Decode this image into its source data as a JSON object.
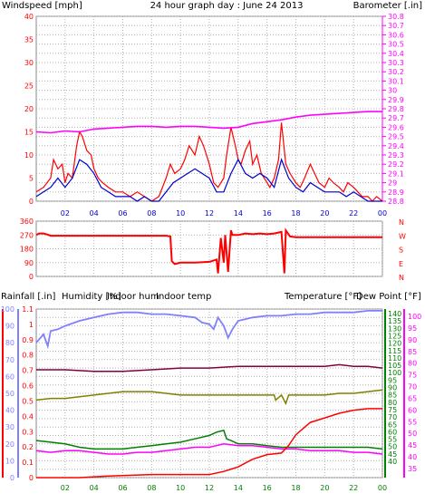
{
  "colors": {
    "wind": "#ff0000",
    "gust_avg": "#0000cc",
    "barometer": "#ff00ff",
    "direction": "#ff0000",
    "grid": "#b0b0b0",
    "title": "#0000cc",
    "humidity": "#8080ff",
    "indoor_hum": "#808000",
    "indoor_temp": "#800040",
    "temperature": "#008000",
    "dewpoint": "#ff00ff",
    "rainfall": "#ff0000",
    "bottom_axis": "#008000"
  },
  "chart_data": [
    {
      "type": "line",
      "title": "24 hour graph day : June 24 2013",
      "ylabel": "Windspeed [mph]",
      "y2label": "Barometer [.in]",
      "ylim": [
        0,
        40
      ],
      "y_ticks": [
        "0",
        "5",
        "10",
        "15",
        "20",
        "25",
        "30",
        "35",
        "40"
      ],
      "y2lim": [
        28.8,
        30.8
      ],
      "y2_ticks": [
        "28.8",
        "28.9",
        "29",
        "29.1",
        "29.2",
        "29.3",
        "29.4",
        "29.5",
        "29.6",
        "29.7",
        "29.8",
        "29.9",
        "30",
        "30.1",
        "30.2",
        "30.3",
        "30.4",
        "30.5",
        "30.6",
        "30.7",
        "30.8"
      ],
      "x_ticks": [
        "02",
        "04",
        "06",
        "08",
        "10",
        "12",
        "14",
        "16",
        "18",
        "20",
        "22",
        "00"
      ],
      "xlim": [
        0,
        24
      ],
      "grid": true,
      "series": [
        {
          "key": "wind",
          "axis": "left",
          "x": [
            0,
            0.5,
            1,
            1.2,
            1.5,
            1.8,
            2,
            2.2,
            2.5,
            2.8,
            3,
            3.2,
            3.5,
            3.8,
            4,
            4.3,
            4.6,
            5,
            5.5,
            6,
            6.5,
            7,
            7.5,
            8,
            8.5,
            9,
            9.3,
            9.6,
            10,
            10.3,
            10.6,
            11,
            11.3,
            11.6,
            12,
            12.3,
            12.6,
            13,
            13.2,
            13.5,
            13.8,
            14,
            14.2,
            14.5,
            14.8,
            15,
            15.3,
            15.6,
            16,
            16.2,
            16.5,
            16.8,
            17,
            17.3,
            17.6,
            18,
            18.3,
            18.6,
            19,
            19.3,
            19.6,
            20,
            20.3,
            20.6,
            21,
            21.3,
            21.6,
            22,
            22.3,
            22.6,
            23,
            23.3,
            23.6,
            24
          ],
          "values": [
            2,
            3,
            5,
            9,
            7,
            8,
            4,
            6,
            5,
            12,
            15,
            14,
            11,
            10,
            7,
            5,
            4,
            3,
            2,
            2,
            1,
            2,
            1,
            0,
            1,
            5,
            8,
            6,
            7,
            9,
            12,
            10,
            14,
            12,
            8,
            4,
            3,
            5,
            10,
            16,
            12,
            9,
            8,
            11,
            13,
            8,
            10,
            6,
            4,
            3,
            5,
            9,
            17,
            8,
            6,
            4,
            3,
            5,
            8,
            6,
            4,
            3,
            5,
            4,
            3,
            2,
            4,
            3,
            2,
            1,
            1,
            0,
            1,
            0
          ]
        },
        {
          "key": "gust_avg",
          "axis": "left",
          "x": [
            0,
            0.5,
            1,
            1.5,
            2,
            2.5,
            3,
            3.5,
            4,
            4.5,
            5,
            5.5,
            6,
            6.5,
            7,
            7.5,
            8,
            8.5,
            9,
            9.5,
            10,
            10.5,
            11,
            11.5,
            12,
            12.5,
            13,
            13.5,
            14,
            14.5,
            15,
            15.5,
            16,
            16.5,
            17,
            17.5,
            18,
            18.5,
            19,
            19.5,
            20,
            20.5,
            21,
            21.5,
            22,
            22.5,
            23,
            23.5,
            24
          ],
          "values": [
            1,
            2,
            3,
            5,
            3,
            5,
            9,
            8,
            6,
            3,
            2,
            1,
            1,
            1,
            0,
            1,
            0,
            0,
            2,
            4,
            5,
            6,
            7,
            6,
            5,
            2,
            2,
            6,
            9,
            6,
            5,
            6,
            5,
            3,
            9,
            5,
            3,
            2,
            4,
            3,
            2,
            2,
            2,
            1,
            2,
            1,
            0,
            0,
            0
          ]
        },
        {
          "key": "barometer",
          "axis": "right",
          "x": [
            0,
            1,
            2,
            3,
            4,
            5,
            6,
            7,
            8,
            9,
            10,
            11,
            12,
            13,
            14,
            15,
            16,
            17,
            18,
            19,
            20,
            21,
            22,
            23,
            24
          ],
          "values": [
            29.55,
            29.54,
            29.56,
            29.55,
            29.58,
            29.59,
            29.6,
            29.61,
            29.61,
            29.6,
            29.61,
            29.61,
            29.6,
            29.59,
            29.6,
            29.64,
            29.66,
            29.68,
            29.71,
            29.73,
            29.74,
            29.75,
            29.76,
            29.77,
            29.77
          ]
        }
      ]
    },
    {
      "type": "line",
      "ylim": [
        0,
        360
      ],
      "y_ticks": [
        "0",
        "90",
        "180",
        "270",
        "360"
      ],
      "y2_labels": [
        "N",
        "W",
        "S",
        "E",
        "N"
      ],
      "xlim": [
        0,
        24
      ],
      "grid": true,
      "series": [
        {
          "key": "direction",
          "x": [
            0,
            0.2,
            0.5,
            0.7,
            1,
            2,
            3,
            4,
            5,
            6,
            7,
            8,
            9,
            9.3,
            9.4,
            9.6,
            10,
            11,
            12,
            12.5,
            12.6,
            12.8,
            13,
            13.1,
            13.3,
            13.5,
            13.6,
            14,
            14.5,
            15,
            15.5,
            16,
            16.5,
            17,
            17.2,
            17.3,
            17.6,
            18,
            19,
            20,
            21,
            22,
            23,
            24
          ],
          "values": [
            270,
            280,
            280,
            275,
            265,
            265,
            265,
            265,
            265,
            265,
            265,
            265,
            265,
            260,
            100,
            80,
            90,
            90,
            95,
            110,
            20,
            250,
            90,
            270,
            30,
            300,
            270,
            270,
            280,
            275,
            280,
            275,
            280,
            290,
            20,
            300,
            260,
            255,
            255,
            255,
            255,
            255,
            255,
            255
          ]
        }
      ]
    },
    {
      "type": "line",
      "labels": {
        "rainfall": "Rainfall [.in]",
        "humidity": "Humidity [%]",
        "indoor_hum": "Indoor hum",
        "indoor_temp": "Indoor temp",
        "temperature": "Temperature [°F]",
        "dewpoint": "Dew Point [°F]"
      },
      "y_rain_ticks": [
        "0",
        "0.1",
        "0.2",
        "0.3",
        "0.4",
        "0.5",
        "0.6",
        "0.7",
        "0.8",
        "0.9",
        "1",
        "1.1"
      ],
      "y_hum_ticks": [
        "0",
        "10",
        "20",
        "30",
        "40",
        "50",
        "60",
        "70",
        "80",
        "90",
        "100"
      ],
      "y_temp_ticks": [
        "40",
        "45",
        "50",
        "55",
        "60",
        "65",
        "70",
        "75",
        "80",
        "85",
        "90",
        "95",
        "100",
        "105",
        "110",
        "115",
        "120",
        "125",
        "130",
        "135",
        "140"
      ],
      "y_dew_ticks": [
        "35",
        "40",
        "45",
        "50",
        "55",
        "60",
        "65",
        "70",
        "75",
        "80",
        "85",
        "90",
        "95",
        "100"
      ],
      "x_ticks": [
        "02",
        "04",
        "06",
        "08",
        "10",
        "12",
        "14",
        "16",
        "18",
        "20",
        "22",
        "00"
      ],
      "xlim": [
        0,
        24
      ],
      "grid": true,
      "series": [
        {
          "key": "humidity",
          "axis": "hum",
          "x": [
            0,
            0.5,
            0.8,
            1,
            1.5,
            2,
            3,
            4,
            5,
            6,
            7,
            8,
            9,
            10,
            11,
            11.5,
            12,
            12.3,
            12.6,
            13,
            13.3,
            13.6,
            14,
            15,
            16,
            17,
            18,
            19,
            20,
            21,
            22,
            23,
            24
          ],
          "values": [
            80,
            85,
            78,
            87,
            88,
            90,
            93,
            95,
            97,
            98,
            98,
            97,
            97,
            96,
            95,
            92,
            91,
            88,
            95,
            90,
            83,
            88,
            93,
            95,
            96,
            96,
            97,
            97,
            98,
            98,
            98,
            99,
            99
          ]
        },
        {
          "key": "indoor_hum",
          "axis": "hum",
          "x": [
            0,
            1,
            2,
            3,
            4,
            5,
            6,
            7,
            8,
            9,
            10,
            11,
            12,
            13,
            14,
            15,
            16,
            16.5,
            16.6,
            17,
            17.3,
            17.5,
            18,
            19,
            20,
            21,
            22,
            23,
            24
          ],
          "values": [
            46,
            47,
            47,
            48,
            49,
            50,
            51,
            51,
            51,
            50,
            49,
            49,
            49,
            49,
            49,
            49,
            49,
            49,
            46,
            49,
            44,
            49,
            49,
            49,
            49,
            50,
            50,
            51,
            52
          ]
        },
        {
          "key": "indoor_temp",
          "axis": "hum",
          "x": [
            0,
            2,
            4,
            6,
            8,
            10,
            12,
            14,
            16,
            18,
            20,
            21,
            22,
            23,
            24
          ],
          "values": [
            64,
            64,
            63,
            63,
            64,
            65,
            65,
            66,
            66,
            66,
            66,
            67,
            66,
            66,
            65
          ]
        },
        {
          "key": "temperature",
          "axis": "hum",
          "x": [
            0,
            1,
            2,
            3,
            4,
            5,
            6,
            7,
            8,
            9,
            10,
            11,
            12,
            12.5,
            13,
            13.2,
            13.5,
            14,
            15,
            16,
            17,
            18,
            19,
            20,
            21,
            22,
            23,
            24
          ],
          "values": [
            22,
            21,
            20,
            18,
            17,
            17,
            17,
            18,
            19,
            20,
            21,
            23,
            25,
            27,
            28,
            23,
            22,
            20,
            20,
            19,
            18,
            18,
            18,
            18,
            18,
            18,
            18,
            17
          ]
        },
        {
          "key": "dewpoint",
          "axis": "hum",
          "x": [
            0,
            1,
            2,
            3,
            4,
            5,
            6,
            7,
            8,
            9,
            10,
            11,
            12,
            13,
            14,
            15,
            16,
            17,
            18,
            19,
            20,
            21,
            22,
            23,
            24
          ],
          "values": [
            16,
            15,
            16,
            16,
            15,
            14,
            14,
            15,
            15,
            16,
            17,
            18,
            18,
            20,
            19,
            19,
            18,
            17,
            17,
            16,
            16,
            16,
            15,
            15,
            14
          ]
        },
        {
          "key": "rainfall",
          "axis": "rain",
          "x": [
            0,
            3,
            5,
            8,
            10,
            12,
            13,
            14,
            15,
            16,
            17,
            17.5,
            18,
            19,
            20,
            21,
            22,
            23,
            24
          ],
          "values": [
            0,
            0,
            0.01,
            0.02,
            0.02,
            0.02,
            0.04,
            0.07,
            0.12,
            0.15,
            0.16,
            0.21,
            0.28,
            0.36,
            0.39,
            0.42,
            0.44,
            0.45,
            0.45
          ]
        }
      ]
    }
  ]
}
